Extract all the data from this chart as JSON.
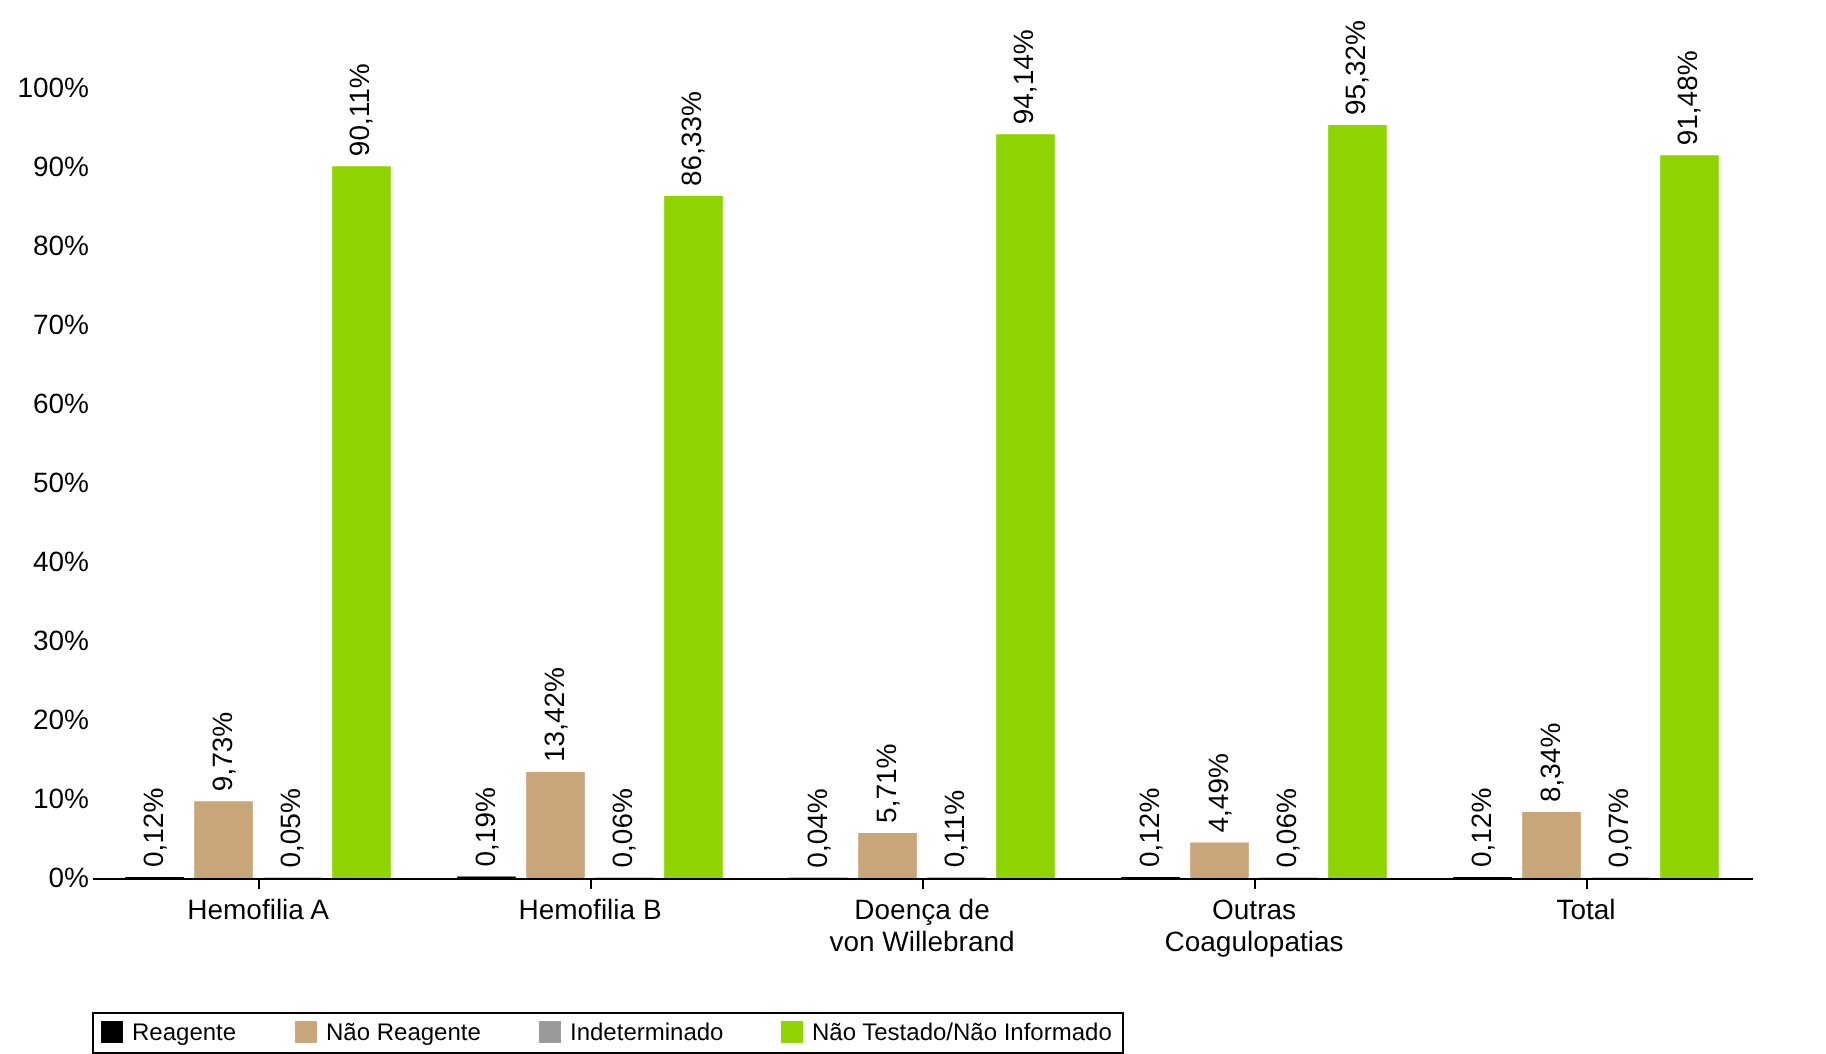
{
  "chart_data": {
    "type": "bar",
    "categories": [
      "Hemofilia A",
      "Hemofilia B",
      "Doença de\nvon Willebrand",
      "Outras\nCoagulopatias",
      "Total"
    ],
    "ylim": [
      0,
      100
    ],
    "yticks": [
      {
        "value": 0,
        "label": "0%"
      },
      {
        "value": 10,
        "label": "10%"
      },
      {
        "value": 20,
        "label": "20%"
      },
      {
        "value": 30,
        "label": "30%"
      },
      {
        "value": 40,
        "label": "40%"
      },
      {
        "value": 50,
        "label": "50%"
      },
      {
        "value": 60,
        "label": "60%"
      },
      {
        "value": 70,
        "label": "70%"
      },
      {
        "value": 80,
        "label": "80%"
      },
      {
        "value": 90,
        "label": "90%"
      },
      {
        "value": 100,
        "label": "100%"
      }
    ],
    "legend": "bottom",
    "grid": false,
    "series": [
      {
        "name": "Reagente",
        "color": "#000000",
        "values": [
          0.12,
          0.19,
          0.04,
          0.12,
          0.12
        ],
        "value_labels": [
          "0,12%",
          "0,19%",
          "0,04%",
          "0,12%",
          "0,12%"
        ]
      },
      {
        "name": "Não Reagente",
        "color": "#c8a67a",
        "values": [
          9.73,
          13.42,
          5.71,
          4.49,
          8.34
        ],
        "value_labels": [
          "9,73%",
          "13,42%",
          "5,71%",
          "4,49%",
          "8,34%"
        ]
      },
      {
        "name": "Indeterminado",
        "color": "#999999",
        "values": [
          0.05,
          0.06,
          0.11,
          0.06,
          0.07
        ],
        "value_labels": [
          "0,05%",
          "0,06%",
          "0,11%",
          "0,06%",
          "0,07%"
        ]
      },
      {
        "name": "Não Testado/Não Informado",
        "color": "#8fd400",
        "values": [
          90.11,
          86.33,
          94.14,
          95.32,
          91.48
        ],
        "value_labels": [
          "90,11%",
          "86,33%",
          "94,14%",
          "95,32%",
          "91,48%"
        ]
      }
    ]
  }
}
